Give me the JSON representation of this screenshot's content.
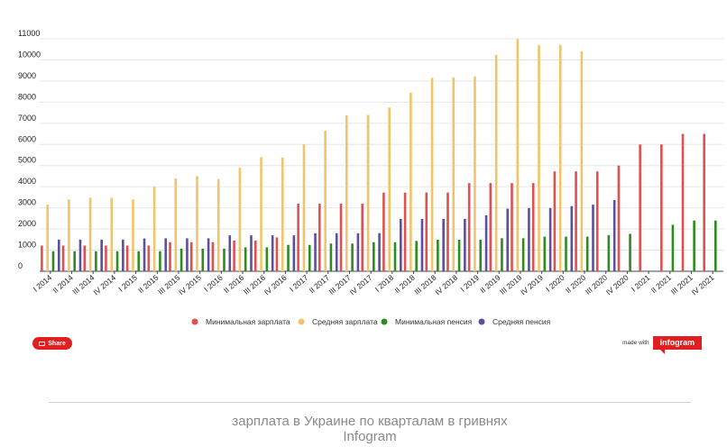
{
  "chart_data": {
    "type": "bar",
    "categories": [
      "I 2014",
      "II 2014",
      "III 2014",
      "IV 2014",
      "I 2015",
      "II 2015",
      "III 2015",
      "IV 2015",
      "I 2016",
      "II 2016",
      "III 2016",
      "IV 2016",
      "I 2017",
      "II 2017",
      "III 2017",
      "IV 2017",
      "I 2018",
      "II 2018",
      "III 2018",
      "IV 2018",
      "I 2019",
      "II 2019",
      "III 2019",
      "IV 2019",
      "I 2020",
      "II 2020",
      "III 2020",
      "IV 2020",
      "I 2021",
      "II 2021",
      "III 2021",
      "IV 2021"
    ],
    "series": [
      {
        "name": "Минимальная зарплата",
        "color": "#e05050",
        "values": [
          1218,
          1218,
          1218,
          1218,
          1218,
          1218,
          1378,
          1378,
          1378,
          1450,
          1450,
          1600,
          3200,
          3200,
          3200,
          3200,
          3723,
          3723,
          3723,
          3723,
          4173,
          4173,
          4173,
          4173,
          4723,
          4723,
          4723,
          5000,
          6000,
          6000,
          6500,
          6500
        ]
      },
      {
        "name": "Средняя зарплата",
        "color": "#f2c46a",
        "values": [
          3150,
          3400,
          3480,
          3480,
          3400,
          4000,
          4400,
          4500,
          4360,
          4900,
          5400,
          5380,
          6000,
          6650,
          7380,
          7400,
          7750,
          8450,
          9150,
          9170,
          9220,
          10240,
          10980,
          10700,
          10700,
          10400,
          null,
          null,
          null,
          null,
          null,
          null
        ]
      },
      {
        "name": "Минимальная пенсия",
        "color": "#2e8b1f",
        "values": [
          949,
          949,
          949,
          949,
          949,
          949,
          1074,
          1074,
          1074,
          1130,
          1130,
          1247,
          1247,
          1312,
          1312,
          1373,
          1373,
          1435,
          1497,
          1497,
          1497,
          1564,
          1564,
          1638,
          1638,
          1638,
          1712,
          1769,
          null,
          2200,
          2400,
          2400
        ]
      },
      {
        "name": "Средняя пенсия",
        "color": "#5c4f9e",
        "values": [
          1500,
          1500,
          1500,
          1500,
          1550,
          1560,
          1560,
          1560,
          1700,
          1700,
          1700,
          1700,
          1800,
          1800,
          1800,
          1800,
          2480,
          2480,
          2480,
          2480,
          2650,
          2960,
          2990,
          2990,
          3080,
          3150,
          3370,
          null,
          null,
          null,
          null,
          null
        ]
      }
    ],
    "yticks": [
      0,
      1000,
      2000,
      3000,
      4000,
      5000,
      6000,
      7000,
      8000,
      9000,
      10000,
      11000
    ],
    "ylim": [
      0,
      11000
    ],
    "title": "",
    "xlabel": "",
    "ylabel": "",
    "legend_position": "bottom-center"
  },
  "share": {
    "label": "Share"
  },
  "madewith": {
    "label": "made with",
    "brand": "infogram"
  },
  "caption": {
    "line1": "зарплата в Украине по кварталам в гривнях",
    "line2": "Infogram"
  }
}
